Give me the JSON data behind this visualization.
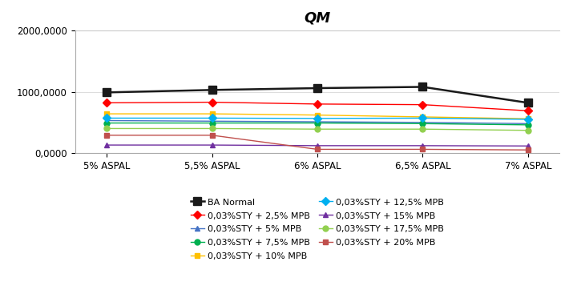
{
  "title": "QM",
  "x_labels": [
    "5% ASPAL",
    "5,5% ASPAL",
    "6% ASPAL",
    "6,5% ASPAL",
    "7% ASPAL"
  ],
  "ylim": [
    0,
    2000
  ],
  "ytick_labels": [
    "0,0000",
    "1000,0000",
    "2000,0000"
  ],
  "series": [
    {
      "label": "BA Normal",
      "values": [
        990,
        1030,
        1060,
        1080,
        820
      ],
      "color": "#1a1a1a",
      "marker": "s",
      "markersize": 7,
      "linewidth": 1.8,
      "linestyle": "-"
    },
    {
      "label": "0,03%STY + 2,5% MPB",
      "values": [
        820,
        830,
        800,
        790,
        690
      ],
      "color": "#FF0000",
      "marker": "D",
      "markersize": 5,
      "linewidth": 1.0,
      "linestyle": "-"
    },
    {
      "label": "0,03%STY + 5% MPB",
      "values": [
        530,
        520,
        510,
        500,
        480
      ],
      "color": "#4472C4",
      "marker": "^",
      "markersize": 5,
      "linewidth": 1.0,
      "linestyle": "-"
    },
    {
      "label": "0,03%STY + 7,5% MPB",
      "values": [
        490,
        490,
        490,
        480,
        460
      ],
      "color": "#00B050",
      "marker": "o",
      "markersize": 5,
      "linewidth": 1.0,
      "linestyle": "-"
    },
    {
      "label": "0,03%STY + 10% MPB",
      "values": [
        640,
        640,
        620,
        590,
        560
      ],
      "color": "#FFC000",
      "marker": "s",
      "markersize": 5,
      "linewidth": 1.0,
      "linestyle": "-"
    },
    {
      "label": "0,03%STY + 12,5% MPB",
      "values": [
        570,
        570,
        565,
        570,
        550
      ],
      "color": "#00B0F0",
      "marker": "D",
      "markersize": 5,
      "linewidth": 1.0,
      "linestyle": "-"
    },
    {
      "label": "0,03%STY + 15% MPB",
      "values": [
        130,
        130,
        120,
        120,
        115
      ],
      "color": "#7030A0",
      "marker": "^",
      "markersize": 5,
      "linewidth": 1.0,
      "linestyle": "-"
    },
    {
      "label": "0,03%STY + 17,5% MPB",
      "values": [
        400,
        400,
        390,
        390,
        370
      ],
      "color": "#92D050",
      "marker": "o",
      "markersize": 5,
      "linewidth": 1.0,
      "linestyle": "-"
    },
    {
      "label": "0,03%STY + 20% MPB",
      "values": [
        290,
        290,
        60,
        60,
        50
      ],
      "color": "#C0504D",
      "marker": "s",
      "markersize": 5,
      "linewidth": 1.0,
      "linestyle": "-"
    }
  ],
  "legend_order": [
    [
      0,
      1
    ],
    [
      2,
      3
    ],
    [
      4,
      5
    ],
    [
      6,
      7
    ],
    [
      8
    ]
  ],
  "background_color": "#FFFFFF",
  "legend_fontsize": 8.0,
  "title_fontsize": 13,
  "tick_fontsize": 8.5
}
